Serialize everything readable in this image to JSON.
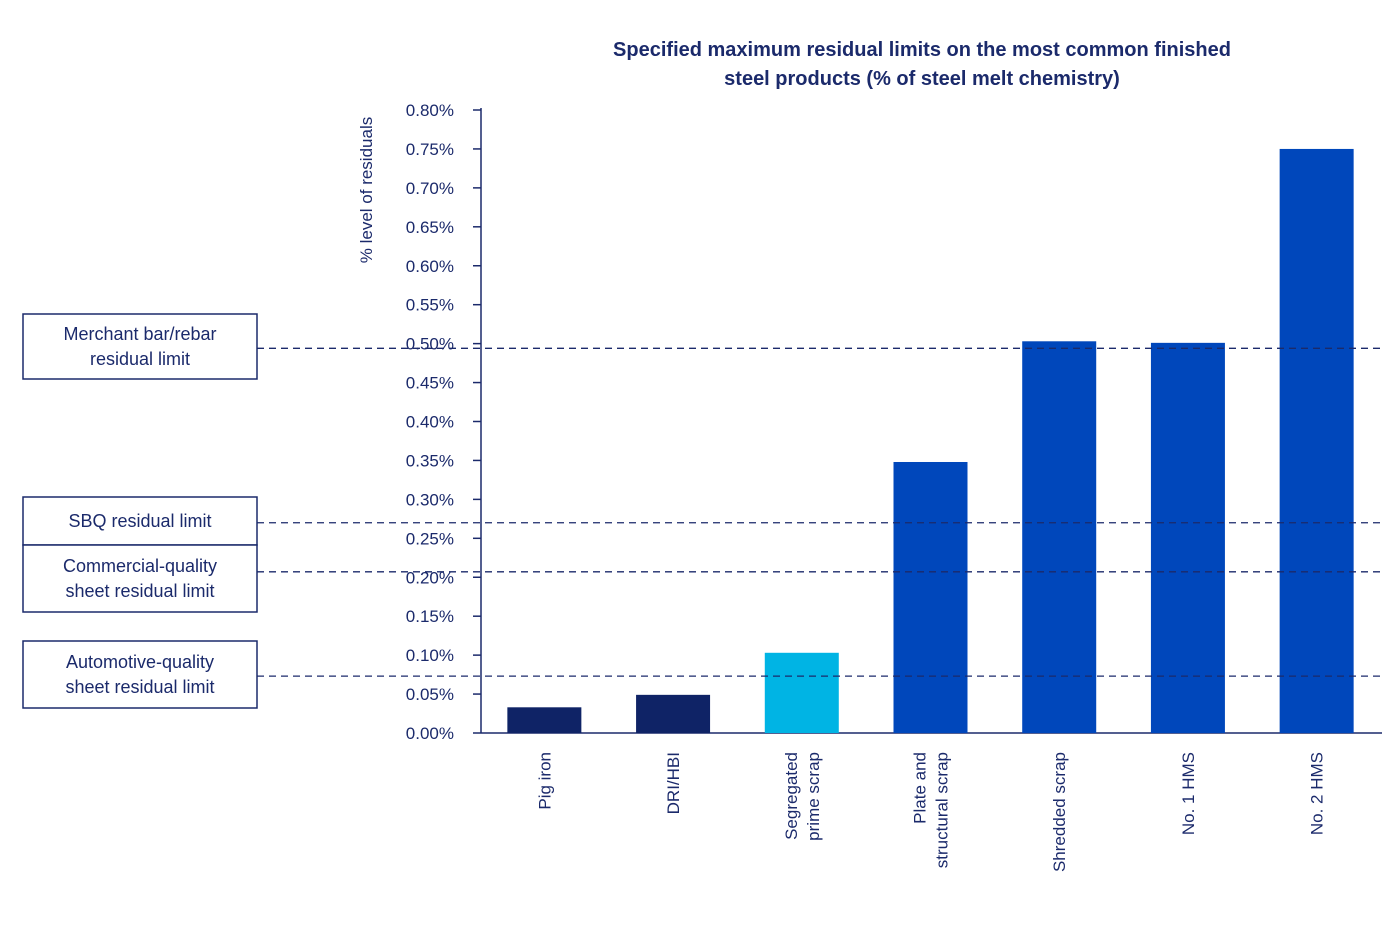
{
  "chart_data": {
    "type": "bar",
    "title_lines": [
      "Specified maximum residual limits on the most common finished",
      "steel products (% of steel melt chemistry)"
    ],
    "ylabel": "% level of residuals",
    "ylim": [
      0,
      0.8
    ],
    "yticks": [
      {
        "value": 0.0,
        "label": "0.00%"
      },
      {
        "value": 0.05,
        "label": "0.05%"
      },
      {
        "value": 0.1,
        "label": "0.10%"
      },
      {
        "value": 0.15,
        "label": "0.15%"
      },
      {
        "value": 0.2,
        "label": "0.20%"
      },
      {
        "value": 0.25,
        "label": "0.25%"
      },
      {
        "value": 0.3,
        "label": "0.30%"
      },
      {
        "value": 0.35,
        "label": "0.35%"
      },
      {
        "value": 0.4,
        "label": "0.40%"
      },
      {
        "value": 0.45,
        "label": "0.45%"
      },
      {
        "value": 0.5,
        "label": "0.50%"
      },
      {
        "value": 0.55,
        "label": "0.55%"
      },
      {
        "value": 0.6,
        "label": "0.60%"
      },
      {
        "value": 0.65,
        "label": "0.65%"
      },
      {
        "value": 0.7,
        "label": "0.70%"
      },
      {
        "value": 0.75,
        "label": "0.75%"
      },
      {
        "value": 0.8,
        "label": "0.80%"
      }
    ],
    "grid": false,
    "legend": "none",
    "bars": [
      {
        "label_lines": [
          "Pig iron"
        ],
        "value": 0.033,
        "color": "#0f2366"
      },
      {
        "label_lines": [
          "DRI/HBI"
        ],
        "value": 0.049,
        "color": "#0f2366"
      },
      {
        "label_lines": [
          "Segregated",
          "prime scrap"
        ],
        "value": 0.103,
        "color": "#00b4e4"
      },
      {
        "label_lines": [
          "Plate and",
          "structural scrap"
        ],
        "value": 0.348,
        "color": "#0047bb"
      },
      {
        "label_lines": [
          "Shredded scrap"
        ],
        "value": 0.503,
        "color": "#0047bb"
      },
      {
        "label_lines": [
          "No. 1 HMS"
        ],
        "value": 0.501,
        "color": "#0047bb"
      },
      {
        "label_lines": [
          "No. 2 HMS"
        ],
        "value": 0.75,
        "color": "#0047bb"
      }
    ],
    "limits": [
      {
        "label_lines": [
          "Merchant bar/rebar",
          "residual limit"
        ],
        "value": 0.494
      },
      {
        "label_lines": [
          "SBQ residual limit"
        ],
        "value": 0.27
      },
      {
        "label_lines": [
          "Commercial-quality",
          "sheet residual limit"
        ],
        "value": 0.207
      },
      {
        "label_lines": [
          "Automotive-quality",
          "sheet residual limit"
        ],
        "value": 0.073
      }
    ],
    "colors": {
      "text": "#1b2a6b",
      "axis": "#1b2a6b",
      "limit_line": "#1b2a6b"
    }
  }
}
